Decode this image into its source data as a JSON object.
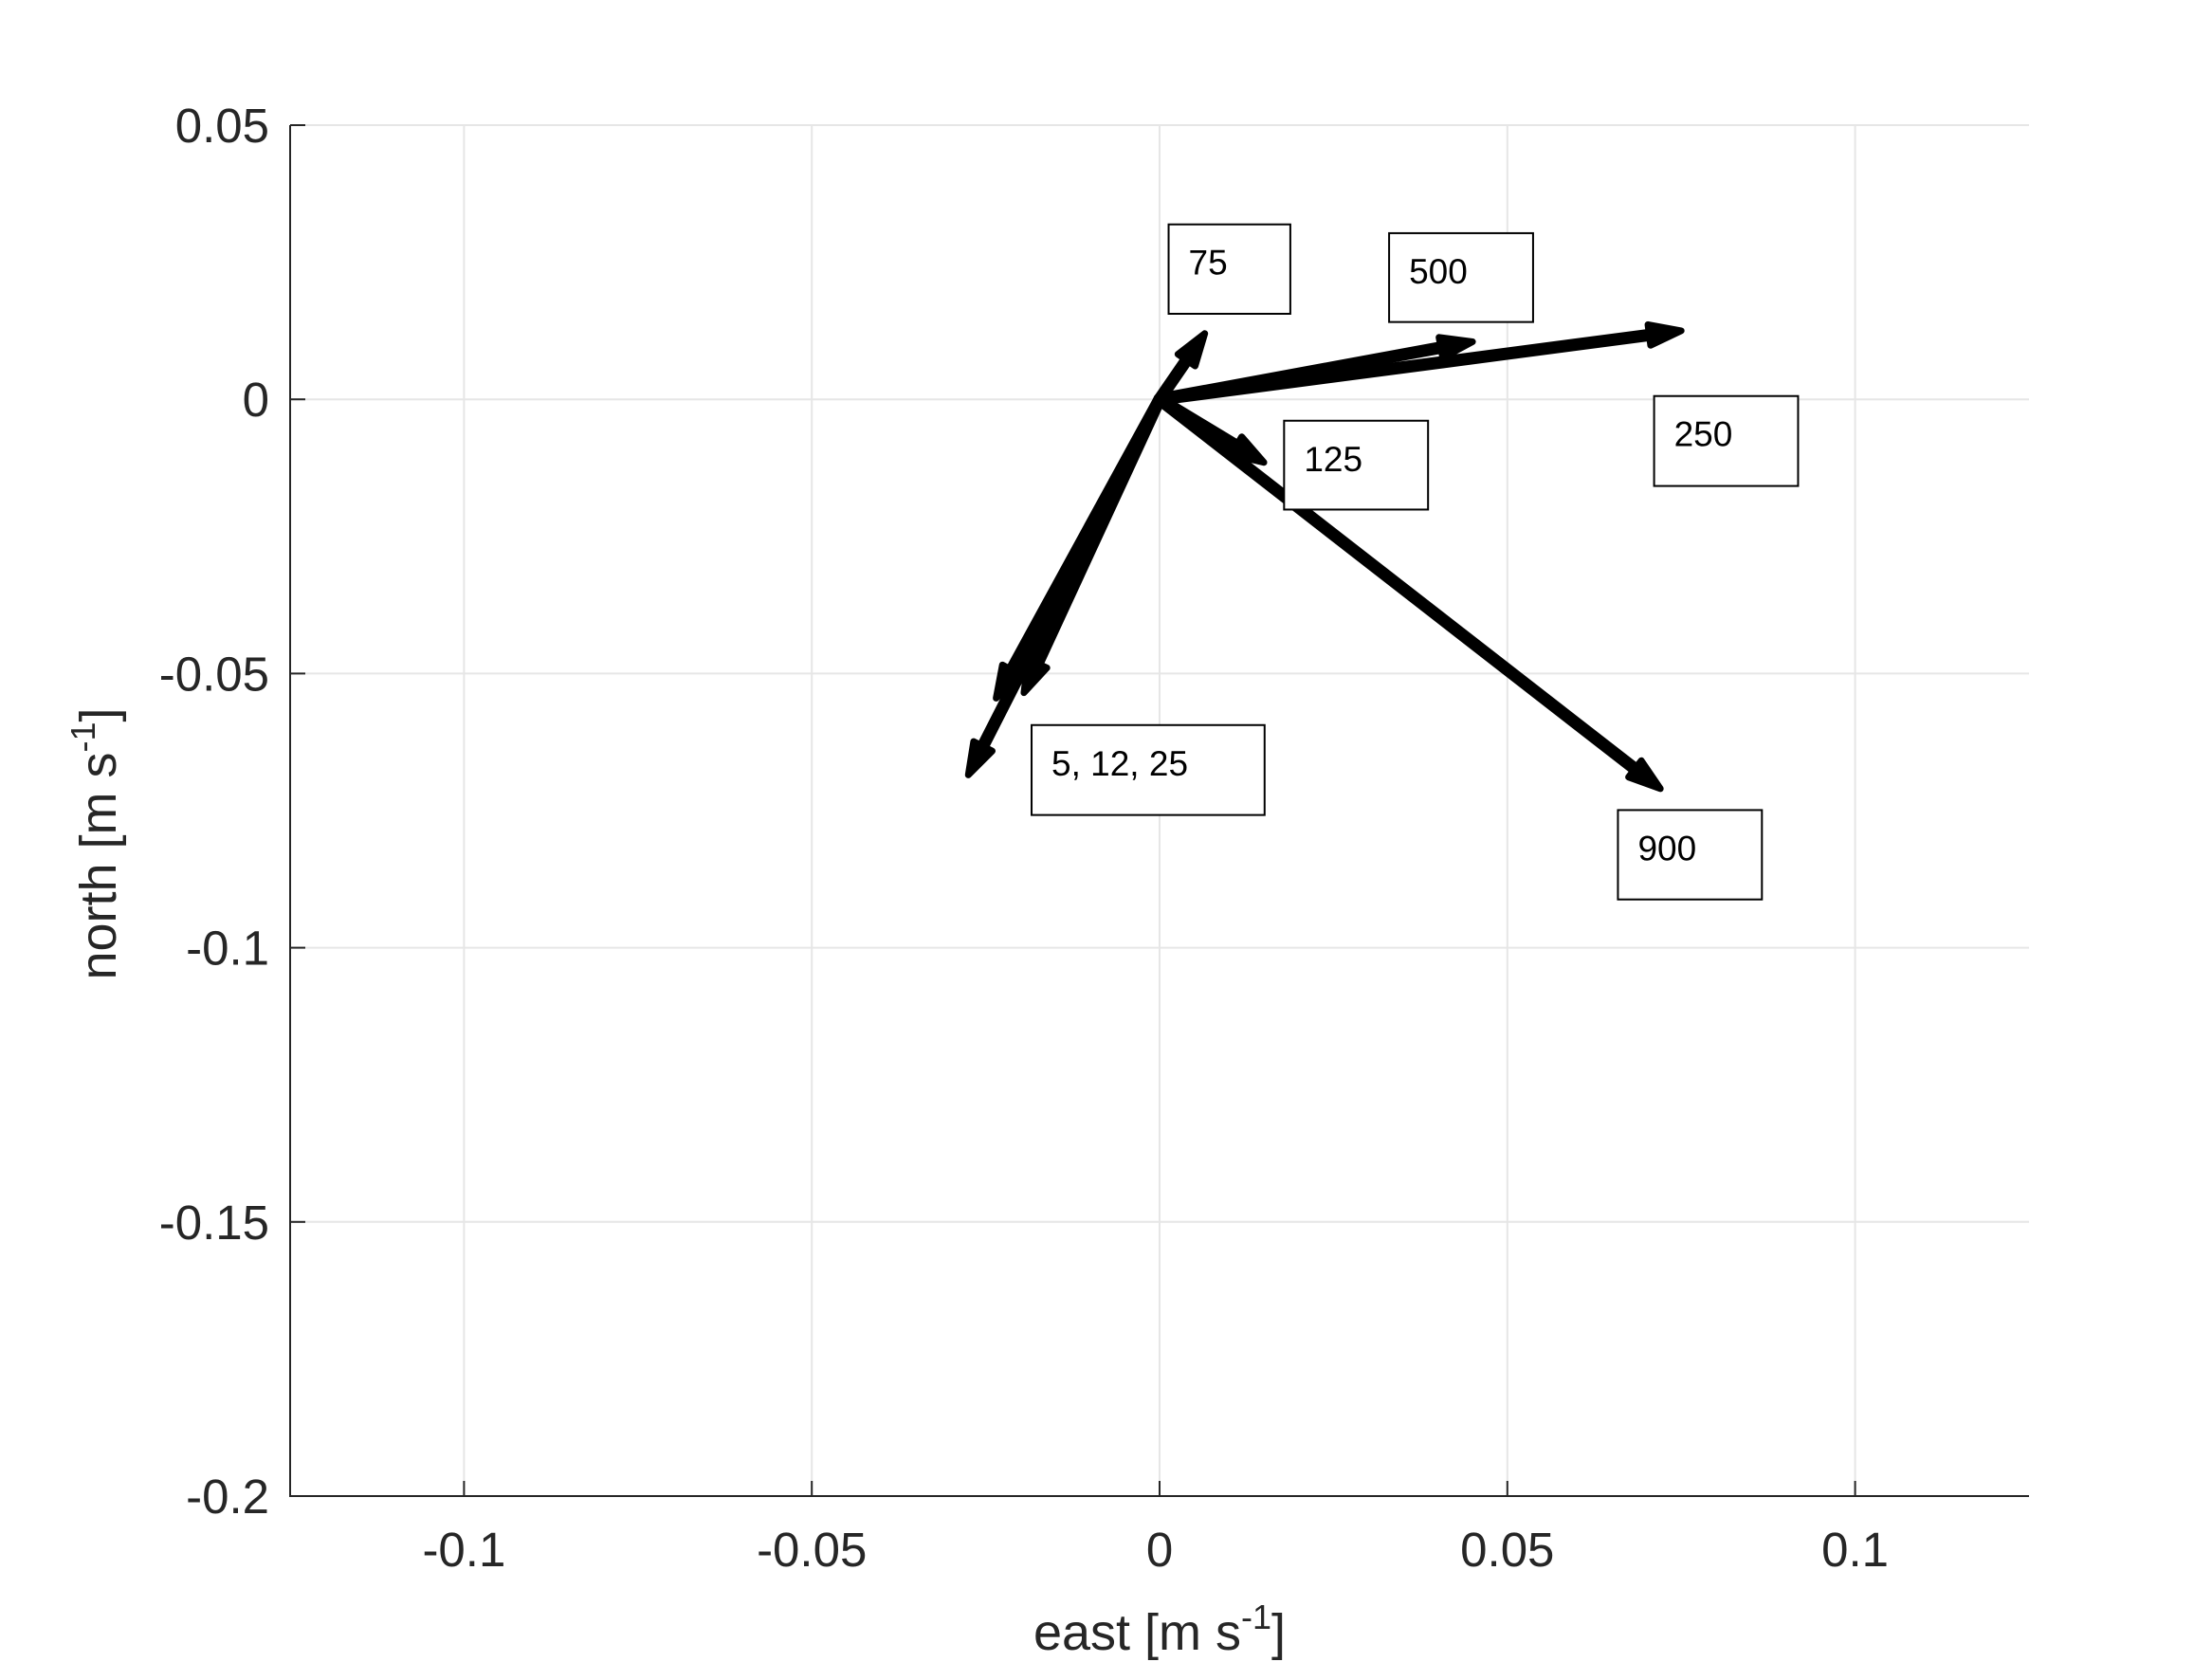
{
  "chart_data": {
    "type": "quiver",
    "xlabel": {
      "base": "east [m s",
      "sup": "-1",
      "end": "]"
    },
    "ylabel": {
      "base": "north [m s",
      "sup": "-1",
      "end": "]"
    },
    "xlim": [
      -0.125,
      0.125
    ],
    "ylim": [
      -0.2,
      0.05
    ],
    "xticks": [
      -0.1,
      -0.05,
      0,
      0.05,
      0.1
    ],
    "xtick_labels": [
      "-0.1",
      "-0.05",
      "0",
      "0.05",
      "0.1"
    ],
    "yticks": [
      -0.2,
      -0.15,
      -0.1,
      -0.05,
      0,
      0.05
    ],
    "ytick_labels": [
      "-0.2",
      "-0.15",
      "-0.1",
      "-0.05",
      "0",
      "0.05"
    ],
    "grid": true,
    "vectors": [
      {
        "u": -0.0275,
        "v": -0.0685
      },
      {
        "u": -0.0235,
        "v": -0.0545
      },
      {
        "u": -0.0195,
        "v": -0.0535
      },
      {
        "u": 0.0065,
        "v": 0.012
      },
      {
        "u": 0.015,
        "v": -0.0115
      },
      {
        "u": 0.075,
        "v": 0.0125
      },
      {
        "u": 0.045,
        "v": 0.0105
      },
      {
        "u": 0.072,
        "v": -0.071
      }
    ],
    "annotations": [
      {
        "text": "75",
        "x": 0.0013,
        "y": 0.0319,
        "x2": 0.0188,
        "y2": 0.0156
      },
      {
        "text": "500",
        "x": 0.033,
        "y": 0.0303,
        "x2": 0.0537,
        "y2": 0.0141
      },
      {
        "text": "125",
        "x": 0.0179,
        "y": -0.0039,
        "x2": 0.0386,
        "y2": -0.0201
      },
      {
        "text": "250",
        "x": 0.0711,
        "y": 0.0006,
        "x2": 0.0918,
        "y2": -0.0158
      },
      {
        "text": "5, 12, 25",
        "x": -0.0184,
        "y": -0.0594,
        "x2": 0.0151,
        "y2": -0.0758
      },
      {
        "text": "900",
        "x": 0.0659,
        "y": -0.0749,
        "x2": 0.0866,
        "y2": -0.0912
      }
    ],
    "colors": {
      "vector": "#000000",
      "axis": "#262626",
      "grid": "#e6e6e6"
    }
  }
}
